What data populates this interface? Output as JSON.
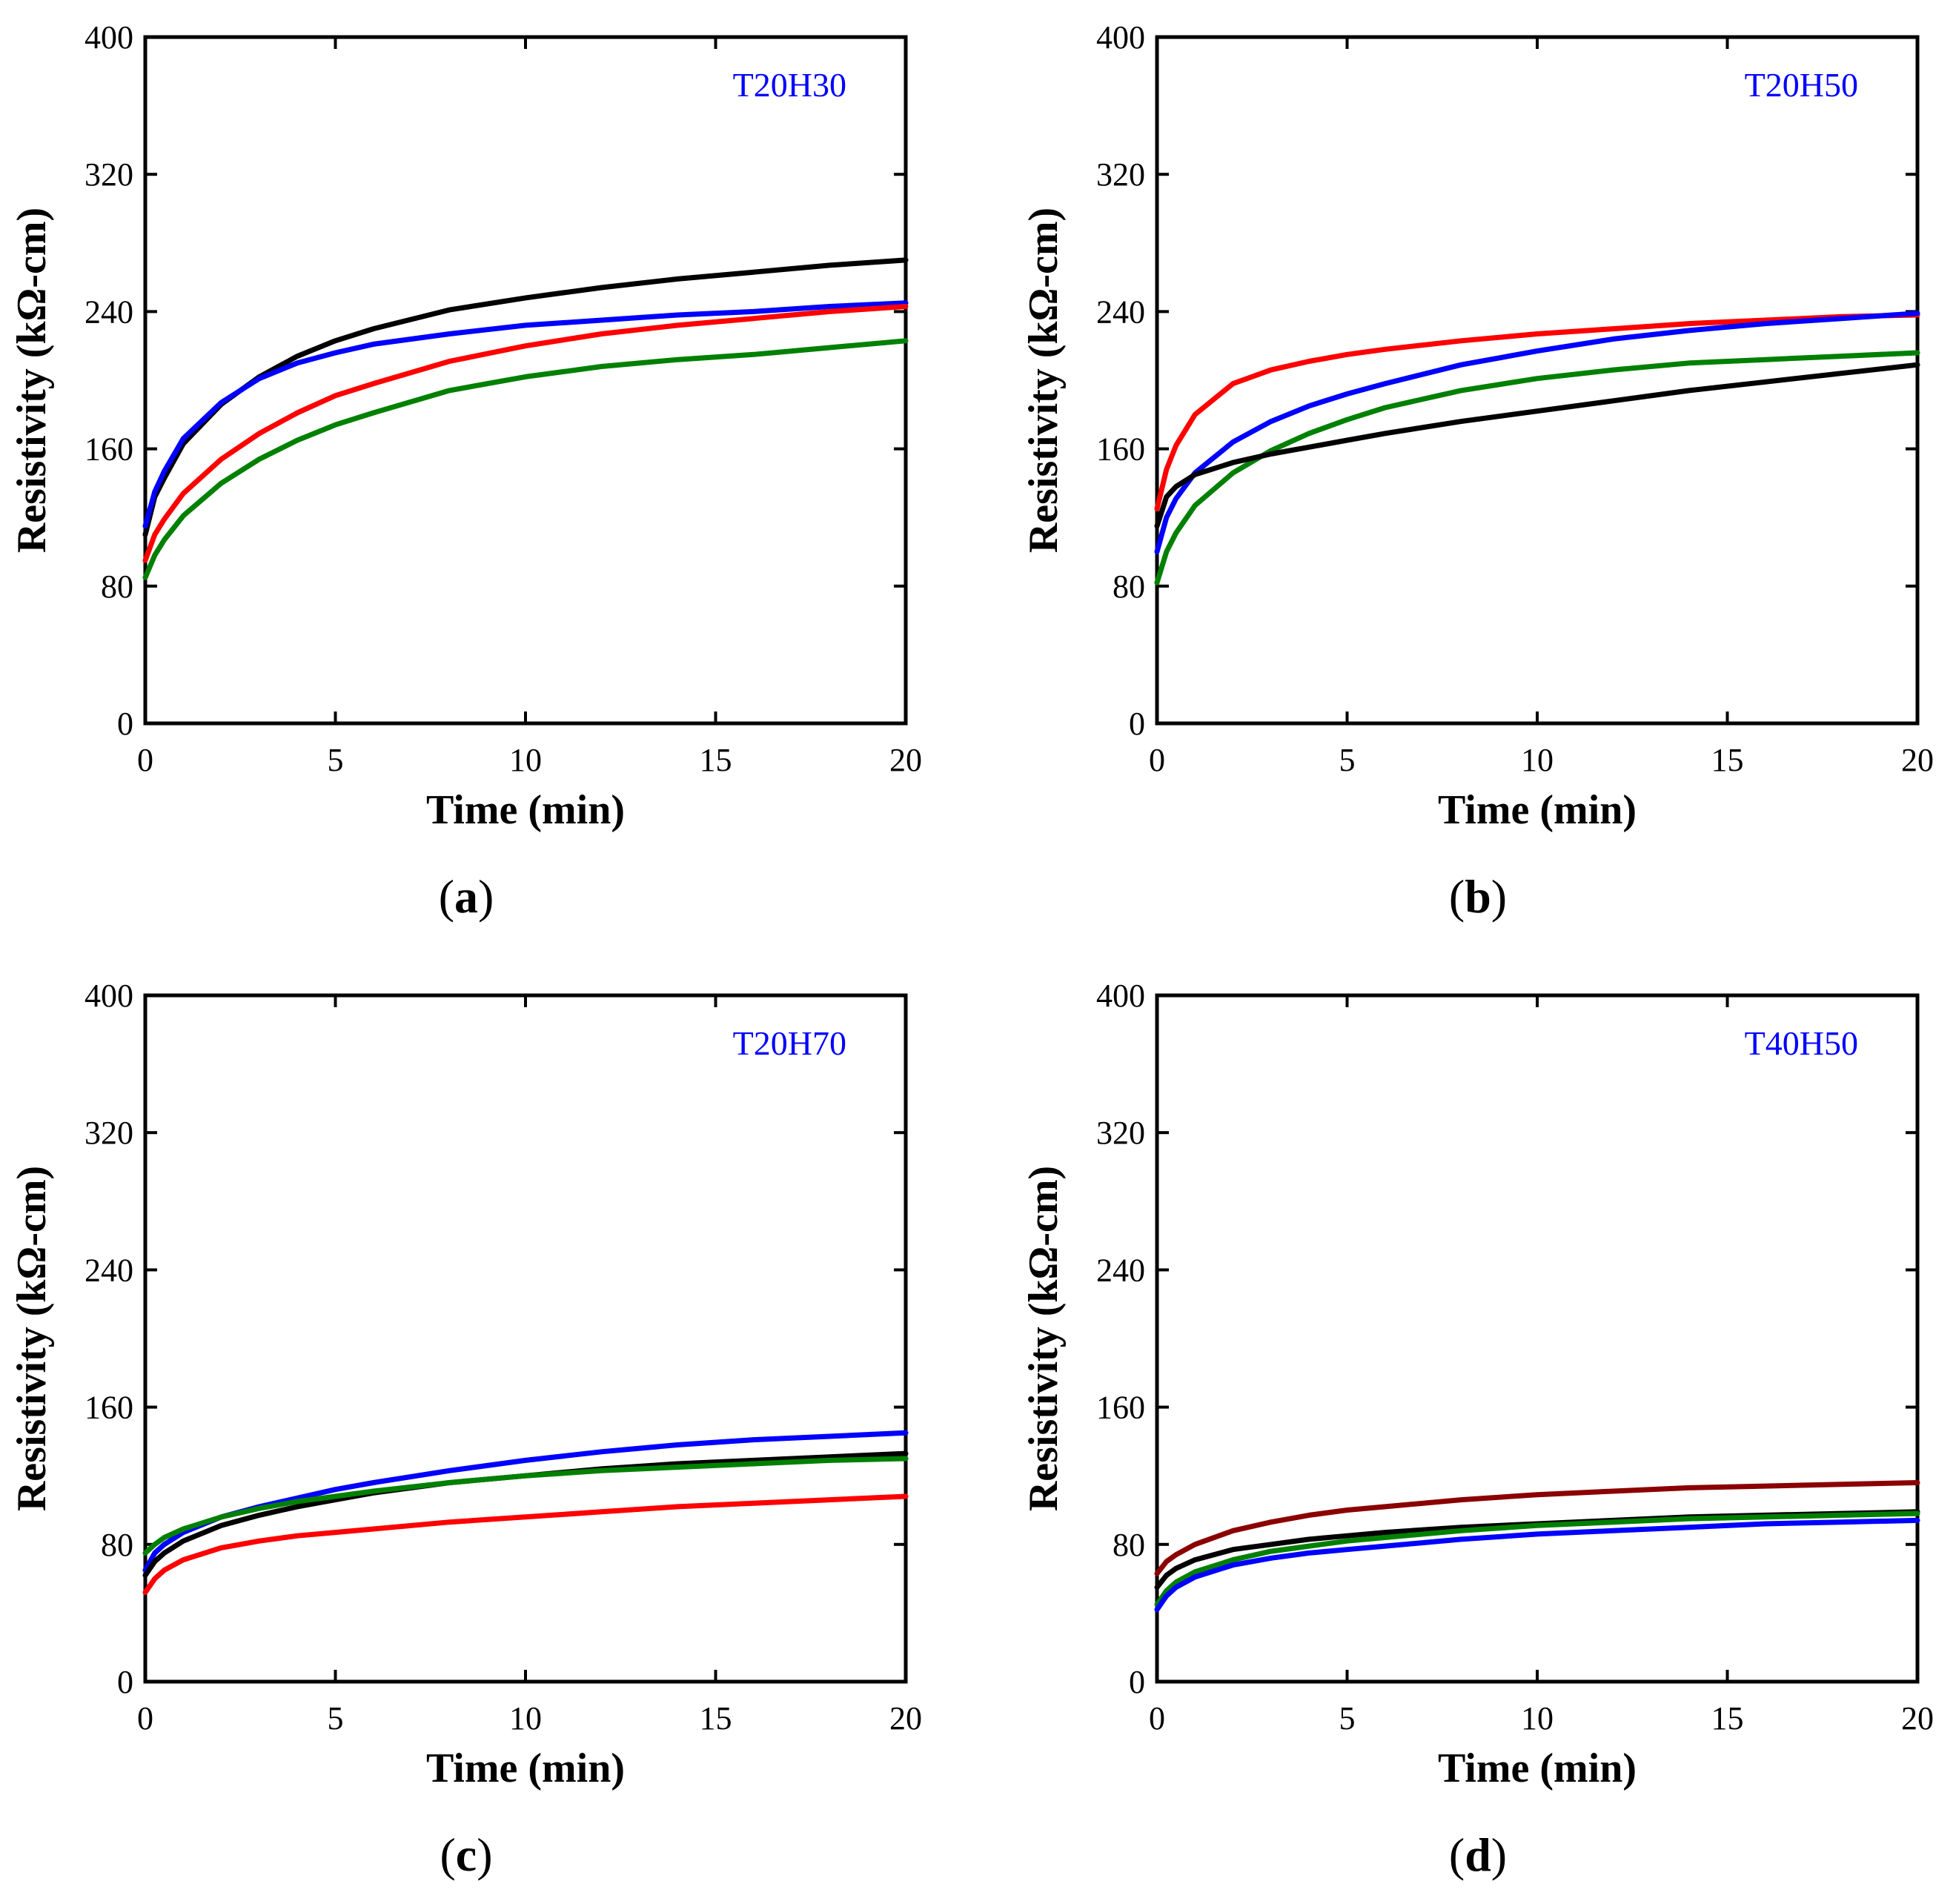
{
  "chart_data": [
    {
      "type": "line",
      "panel": "a",
      "label": "T20H30",
      "xlabel": "Time (min)",
      "ylabel": "Resistivity (kΩ-cm)",
      "xlim": [
        0,
        20
      ],
      "ylim": [
        0,
        400
      ],
      "xticks": [
        0,
        5,
        10,
        15,
        20
      ],
      "yticks": [
        0,
        80,
        160,
        240,
        320,
        400
      ],
      "grid": false,
      "series": [
        {
          "name": "black",
          "color": "#000000",
          "x": [
            0,
            0.25,
            0.5,
            1,
            2,
            3,
            4,
            5,
            6,
            8,
            10,
            12,
            14,
            16,
            18,
            20
          ],
          "y": [
            110,
            132,
            143,
            163,
            186,
            202,
            214,
            223,
            230,
            241,
            248,
            254,
            259,
            263,
            267,
            270
          ]
        },
        {
          "name": "blue",
          "color": "#0000ff",
          "x": [
            0,
            0.25,
            0.5,
            1,
            2,
            3,
            4,
            5,
            6,
            8,
            10,
            12,
            14,
            16,
            18,
            20
          ],
          "y": [
            115,
            135,
            147,
            166,
            187,
            201,
            210,
            216,
            221,
            227,
            232,
            235,
            238,
            240,
            243,
            245
          ]
        },
        {
          "name": "red",
          "color": "#ff0000",
          "x": [
            0,
            0.25,
            0.5,
            1,
            2,
            3,
            4,
            5,
            6,
            8,
            10,
            12,
            14,
            16,
            18,
            20
          ],
          "y": [
            95,
            110,
            119,
            134,
            154,
            169,
            181,
            191,
            198,
            211,
            220,
            227,
            232,
            236,
            240,
            243
          ]
        },
        {
          "name": "green",
          "color": "#008000",
          "x": [
            0,
            0.25,
            0.5,
            1,
            2,
            3,
            4,
            5,
            6,
            8,
            10,
            12,
            14,
            16,
            18,
            20
          ],
          "y": [
            85,
            98,
            107,
            121,
            140,
            154,
            165,
            174,
            181,
            194,
            202,
            208,
            212,
            215,
            219,
            223
          ]
        }
      ]
    },
    {
      "type": "line",
      "panel": "b",
      "label": "T20H50",
      "xlabel": "Time (min)",
      "ylabel": "Resistivity (kΩ-cm)",
      "xlim": [
        0,
        20
      ],
      "ylim": [
        0,
        400
      ],
      "xticks": [
        0,
        5,
        10,
        15,
        20
      ],
      "yticks": [
        0,
        80,
        160,
        240,
        320,
        400
      ],
      "grid": false,
      "series": [
        {
          "name": "red",
          "color": "#ff0000",
          "x": [
            0,
            0.25,
            0.5,
            1,
            2,
            3,
            4,
            5,
            6,
            8,
            10,
            12,
            14,
            16,
            18,
            20
          ],
          "y": [
            125,
            148,
            162,
            180,
            198,
            206,
            211,
            215,
            218,
            223,
            227,
            230,
            233,
            235,
            237,
            238
          ]
        },
        {
          "name": "blue",
          "color": "#0000ff",
          "x": [
            0,
            0.25,
            0.5,
            1,
            2,
            3,
            4,
            5,
            6,
            8,
            10,
            12,
            14,
            16,
            18,
            20
          ],
          "y": [
            100,
            120,
            131,
            146,
            164,
            176,
            185,
            192,
            198,
            209,
            217,
            224,
            229,
            233,
            236,
            239
          ]
        },
        {
          "name": "green",
          "color": "#008000",
          "x": [
            0,
            0.25,
            0.5,
            1,
            2,
            3,
            4,
            5,
            6,
            8,
            10,
            12,
            14,
            16,
            18,
            20
          ],
          "y": [
            82,
            100,
            111,
            127,
            146,
            159,
            169,
            177,
            184,
            194,
            201,
            206,
            210,
            212,
            214,
            216
          ]
        },
        {
          "name": "black",
          "color": "#000000",
          "x": [
            0,
            0.25,
            0.5,
            1,
            2,
            3,
            4,
            5,
            6,
            8,
            10,
            12,
            14,
            16,
            18,
            20
          ],
          "y": [
            115,
            132,
            138,
            145,
            152,
            157,
            161,
            165,
            169,
            176,
            182,
            188,
            194,
            199,
            204,
            209
          ]
        }
      ]
    },
    {
      "type": "line",
      "panel": "c",
      "label": "T20H70",
      "xlabel": "Time (min)",
      "ylabel": "Resistivity (kΩ-cm)",
      "xlim": [
        0,
        20
      ],
      "ylim": [
        0,
        400
      ],
      "xticks": [
        0,
        5,
        10,
        15,
        20
      ],
      "yticks": [
        0,
        80,
        160,
        240,
        320,
        400
      ],
      "grid": false,
      "series": [
        {
          "name": "blue",
          "color": "#0000ff",
          "x": [
            0,
            0.25,
            0.5,
            1,
            2,
            3,
            4,
            5,
            6,
            8,
            10,
            12,
            14,
            16,
            18,
            20
          ],
          "y": [
            65,
            75,
            80,
            87,
            96,
            102,
            107,
            112,
            116,
            123,
            129,
            134,
            138,
            141,
            143,
            145
          ]
        },
        {
          "name": "black",
          "color": "#000000",
          "x": [
            0,
            0.25,
            0.5,
            1,
            2,
            3,
            4,
            5,
            6,
            8,
            10,
            12,
            14,
            16,
            18,
            20
          ],
          "y": [
            62,
            70,
            75,
            82,
            91,
            97,
            102,
            106,
            110,
            116,
            120,
            124,
            127,
            129,
            131,
            133
          ]
        },
        {
          "name": "green",
          "color": "#008000",
          "x": [
            0,
            0.25,
            0.5,
            1,
            2,
            3,
            4,
            5,
            6,
            8,
            10,
            12,
            14,
            16,
            18,
            20
          ],
          "y": [
            75,
            80,
            84,
            89,
            96,
            101,
            105,
            108,
            111,
            116,
            120,
            123,
            125,
            127,
            129,
            130
          ]
        },
        {
          "name": "red",
          "color": "#ff0000",
          "x": [
            0,
            0.25,
            0.5,
            1,
            2,
            3,
            4,
            5,
            6,
            8,
            10,
            12,
            14,
            16,
            18,
            20
          ],
          "y": [
            52,
            60,
            65,
            71,
            78,
            82,
            85,
            87,
            89,
            93,
            96,
            99,
            102,
            104,
            106,
            108
          ]
        }
      ]
    },
    {
      "type": "line",
      "panel": "d",
      "label": "T40H50",
      "xlabel": "Time (min)",
      "ylabel": "Resistivity (kΩ-cm)",
      "xlim": [
        0,
        20
      ],
      "ylim": [
        0,
        400
      ],
      "xticks": [
        0,
        5,
        10,
        15,
        20
      ],
      "yticks": [
        0,
        80,
        160,
        240,
        320,
        400
      ],
      "grid": false,
      "series": [
        {
          "name": "dark-red",
          "color": "#8b0000",
          "x": [
            0,
            0.25,
            0.5,
            1,
            2,
            3,
            4,
            5,
            6,
            8,
            10,
            12,
            14,
            16,
            18,
            20
          ],
          "y": [
            63,
            70,
            74,
            80,
            88,
            93,
            97,
            100,
            102,
            106,
            109,
            111,
            113,
            114,
            115,
            116
          ]
        },
        {
          "name": "black",
          "color": "#000000",
          "x": [
            0,
            0.25,
            0.5,
            1,
            2,
            3,
            4,
            5,
            6,
            8,
            10,
            12,
            14,
            16,
            18,
            20
          ],
          "y": [
            55,
            62,
            66,
            71,
            77,
            80,
            83,
            85,
            87,
            90,
            92,
            94,
            96,
            97,
            98,
            99
          ]
        },
        {
          "name": "green",
          "color": "#008000",
          "x": [
            0,
            0.25,
            0.5,
            1,
            2,
            3,
            4,
            5,
            6,
            8,
            10,
            12,
            14,
            16,
            18,
            20
          ],
          "y": [
            45,
            53,
            58,
            64,
            71,
            76,
            79,
            82,
            84,
            88,
            91,
            93,
            95,
            96,
            97,
            98
          ]
        },
        {
          "name": "blue",
          "color": "#0000ff",
          "x": [
            0,
            0.25,
            0.5,
            1,
            2,
            3,
            4,
            5,
            6,
            8,
            10,
            12,
            14,
            16,
            18,
            20
          ],
          "y": [
            42,
            50,
            55,
            61,
            68,
            72,
            75,
            77,
            79,
            83,
            86,
            88,
            90,
            92,
            93,
            94
          ]
        }
      ]
    }
  ],
  "captions": {
    "a": {
      "open": "(",
      "letter": "a",
      "close": ")"
    },
    "b": {
      "open": "(",
      "letter": "b",
      "close": ")"
    },
    "c": {
      "open": "(",
      "letter": "c",
      "close": ")"
    },
    "d": {
      "open": "(",
      "letter": "d",
      "close": ")"
    }
  },
  "colors": {
    "inset_label": "#0000ff",
    "axis": "#000000",
    "background": "#ffffff"
  }
}
